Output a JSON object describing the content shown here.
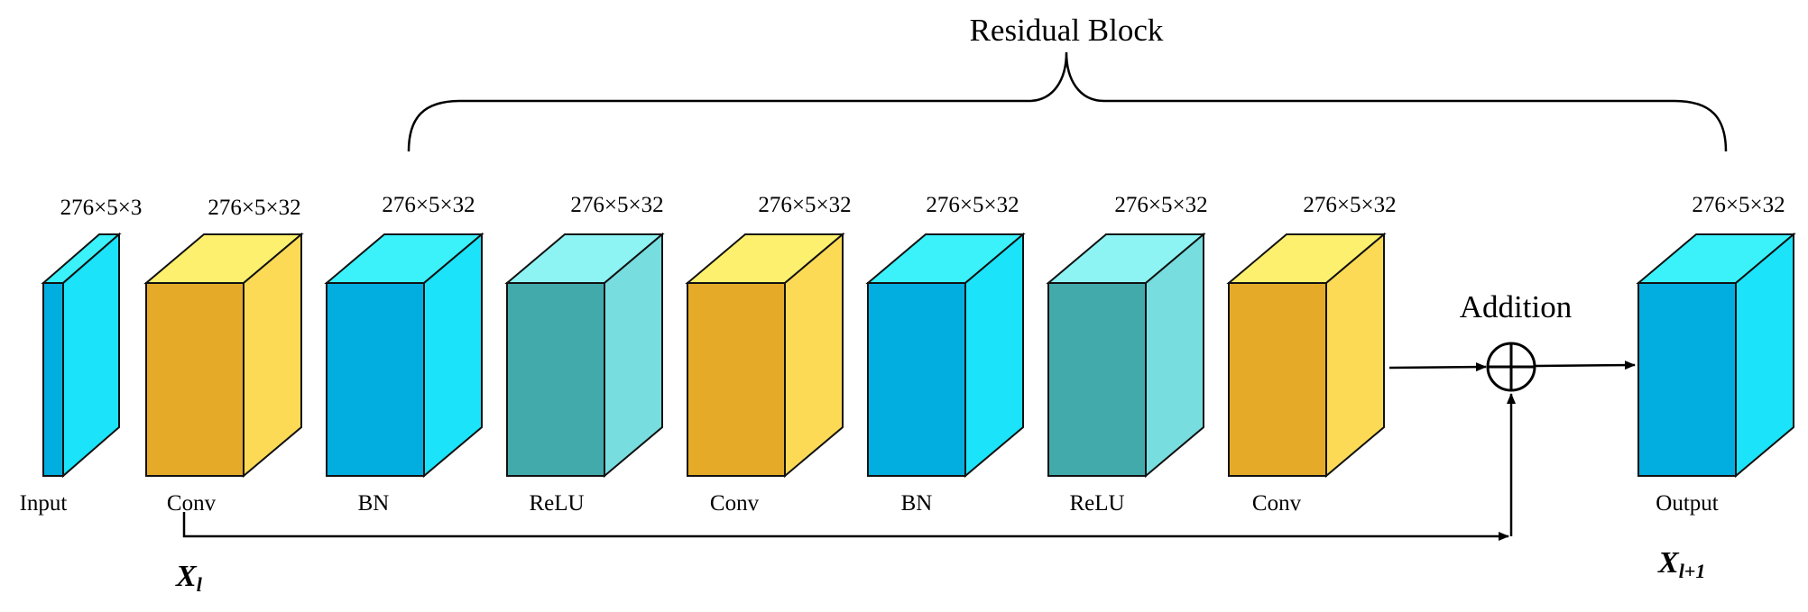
{
  "diagram": {
    "title": "Residual Block",
    "addition_label": "Addition",
    "input_symbol": {
      "base": "X",
      "subscript": "l"
    },
    "output_symbol": {
      "base": "X",
      "subscript": "l+1"
    },
    "colors": {
      "conv": [
        "#E5AA28",
        "#FCDA56",
        "#FDF06E"
      ],
      "bn": [
        "#02AEDF",
        "#1BE3FA",
        "#3BF1FA"
      ],
      "relu": [
        "#42AAAB",
        "#77DDDF",
        "#8EF3F3"
      ]
    },
    "blocks": [
      {
        "id": "input",
        "type": "bn",
        "label": "Input",
        "dim": "276×5×3"
      },
      {
        "id": "conv1",
        "type": "conv",
        "label": "Conv",
        "dim": "276×5×32"
      },
      {
        "id": "bn1",
        "type": "bn",
        "label": "BN",
        "dim": "276×5×32"
      },
      {
        "id": "relu1",
        "type": "relu",
        "label": "ReLU",
        "dim": "276×5×32"
      },
      {
        "id": "conv2",
        "type": "conv",
        "label": "Conv",
        "dim": "276×5×32"
      },
      {
        "id": "bn2",
        "type": "bn",
        "label": "BN",
        "dim": "276×5×32"
      },
      {
        "id": "relu2",
        "type": "relu",
        "label": "ReLU",
        "dim": "276×5×32"
      },
      {
        "id": "conv3",
        "type": "conv",
        "label": "Conv",
        "dim": "276×5×32"
      },
      {
        "id": "output",
        "type": "bn",
        "label": "Output",
        "dim": "276×5×32"
      }
    ]
  }
}
